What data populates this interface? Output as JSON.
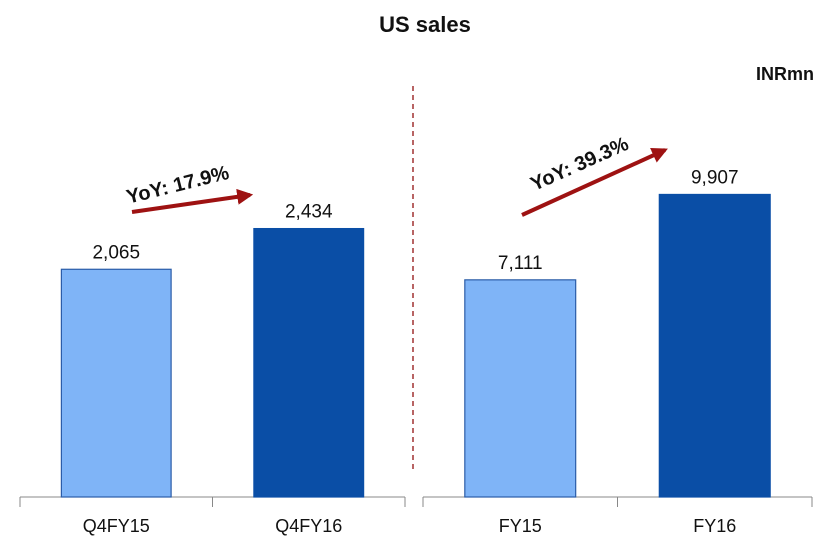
{
  "title": "US sales",
  "unit_label": "INRmn",
  "chart_data": [
    {
      "type": "bar",
      "categories": [
        "Q4FY15",
        "Q4FY16"
      ],
      "values": [
        2065,
        2434
      ],
      "value_labels": [
        "2,065",
        "2,434"
      ],
      "colors": [
        "#7fb4f7",
        "#0a4ea6"
      ],
      "ylim": [
        0,
        3600
      ],
      "annotation": "YoY: 17.9%"
    },
    {
      "type": "bar",
      "categories": [
        "FY15",
        "FY16"
      ],
      "values": [
        7111,
        9907
      ],
      "value_labels": [
        "7,111",
        "9,907"
      ],
      "colors": [
        "#7fb4f7",
        "#0a4ea6"
      ],
      "ylim": [
        0,
        13000
      ],
      "annotation": "YoY: 39.3%"
    }
  ]
}
